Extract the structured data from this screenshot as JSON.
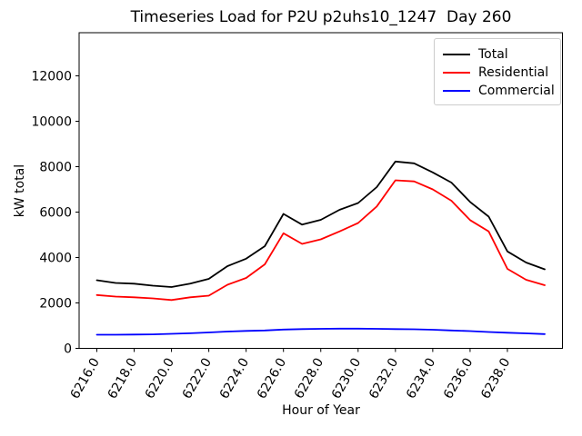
{
  "figure": {
    "title": "Timeseries Load for P2U p2uhs10_1247  Day 260",
    "xlabel": "Hour of Year",
    "ylabel": "kW total"
  },
  "legend": {
    "items": [
      {
        "label": "Total",
        "color": "#000000"
      },
      {
        "label": "Residential",
        "color": "#ff0000"
      },
      {
        "label": "Commercial",
        "color": "#0000ff"
      }
    ]
  },
  "chart_data": {
    "type": "line",
    "title": "Timeseries Load for P2U p2uhs10_1247  Day 260",
    "xlabel": "Hour of Year",
    "ylabel": "kW total",
    "grid": false,
    "legend_position": "upper right",
    "xlim": [
      6215.05,
      6240.95
    ],
    "ylim": [
      0,
      13900
    ],
    "x_ticks": [
      6216,
      6218,
      6220,
      6222,
      6224,
      6226,
      6228,
      6230,
      6232,
      6234,
      6236,
      6238
    ],
    "x_tick_labels": [
      "6216.0",
      "6218.0",
      "6220.0",
      "6222.0",
      "6224.0",
      "6226.0",
      "6228.0",
      "6230.0",
      "6232.0",
      "6234.0",
      "6236.0",
      "6238.0"
    ],
    "x_tick_rotation": 60,
    "y_ticks": [
      0,
      2000,
      4000,
      6000,
      8000,
      10000,
      12000
    ],
    "y_tick_labels": [
      "0",
      "2000",
      "4000",
      "6000",
      "8000",
      "10000",
      "12000"
    ],
    "x": [
      6216,
      6217,
      6218,
      6219,
      6220,
      6221,
      6222,
      6223,
      6224,
      6225,
      6226,
      6227,
      6228,
      6229,
      6230,
      6231,
      6232,
      6233,
      6234,
      6235,
      6236,
      6237,
      6238,
      6239,
      6240
    ],
    "series": [
      {
        "name": "Total",
        "color": "#000000",
        "values": [
          3000,
          2880,
          2850,
          2760,
          2700,
          2850,
          3060,
          3620,
          3950,
          4500,
          5920,
          5450,
          5660,
          6100,
          6400,
          7100,
          8230,
          8150,
          7750,
          7300,
          6450,
          5800,
          4270,
          3780,
          3480
        ]
      },
      {
        "name": "Residential",
        "color": "#ff0000",
        "values": [
          2350,
          2280,
          2250,
          2200,
          2130,
          2250,
          2320,
          2800,
          3100,
          3700,
          5070,
          4600,
          4800,
          5150,
          5520,
          6250,
          7400,
          7350,
          7000,
          6500,
          5650,
          5150,
          3500,
          3020,
          2780
        ]
      },
      {
        "name": "Commercial",
        "color": "#0000ff",
        "values": [
          600,
          600,
          610,
          615,
          640,
          665,
          700,
          740,
          770,
          790,
          830,
          850,
          860,
          870,
          870,
          860,
          850,
          840,
          820,
          790,
          760,
          720,
          690,
          660,
          630
        ]
      }
    ]
  }
}
